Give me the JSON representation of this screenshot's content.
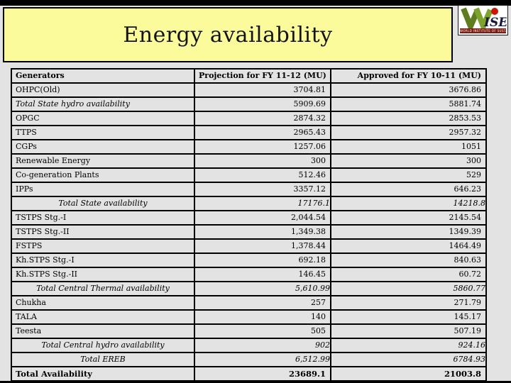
{
  "slide_title": "Energy availability",
  "logo": {
    "name": "WISE",
    "ise_letters": "ISE",
    "tagline": "WORLD INSTITUTE OF SUSTAINABLE ENERGY",
    "green": "#6b8e23",
    "red": "#cc1505",
    "band_color": "#7b1d12"
  },
  "colors": {
    "banner_bg": "#fbfb9b",
    "slide_bg": "#e3e3e3",
    "border": "#000000"
  },
  "table": {
    "headers": [
      "Generators",
      "Projection for FY 11-12 (MU)",
      "Approved for FY 10-11 (MU)"
    ],
    "rows": [
      {
        "label": "OHPC(Old)",
        "projection": "3704.81",
        "approved": "3676.86",
        "variant": "normal"
      },
      {
        "label": "Total State hydro availability",
        "projection": "5909.69",
        "approved": "5881.74",
        "variant": "italic"
      },
      {
        "label": "OPGC",
        "projection": "2874.32",
        "approved": "2853.53",
        "variant": "normal"
      },
      {
        "label": "TTPS",
        "projection": "2965.43",
        "approved": "2957.32",
        "variant": "normal"
      },
      {
        "label": "CGPs",
        "projection": "1257.06",
        "approved": "1051",
        "variant": "normal"
      },
      {
        "label": "Renewable Energy",
        "projection": "300",
        "approved": "300",
        "variant": "normal"
      },
      {
        "label": "Co-generation Plants",
        "projection": "512.46",
        "approved": "529",
        "variant": "normal"
      },
      {
        "label": "IPPs",
        "projection": "3357.12",
        "approved": "646.23",
        "variant": "normal"
      },
      {
        "label": "Total State availability",
        "projection": "17176.1",
        "approved": "14218.8",
        "variant": "center"
      },
      {
        "label": "TSTPS Stg.-I",
        "projection": "2,044.54",
        "approved": "2145.54",
        "variant": "normal"
      },
      {
        "label": "TSTPS Stg.-II",
        "projection": "1,349.38",
        "approved": "1349.39",
        "variant": "normal"
      },
      {
        "label": "FSTPS",
        "projection": "1,378.44",
        "approved": "1464.49",
        "variant": "normal"
      },
      {
        "label": "Kh.STPS Stg.-I",
        "projection": "692.18",
        "approved": "840.63",
        "variant": "normal"
      },
      {
        "label": "Kh.STPS Stg.-II",
        "projection": "146.45",
        "approved": "60.72",
        "variant": "normal"
      },
      {
        "label": "Total Central Thermal availability",
        "projection": "5,610.99",
        "approved": "5860.77",
        "variant": "center"
      },
      {
        "label": "Chukha",
        "projection": "257",
        "approved": "271.79",
        "variant": "normal"
      },
      {
        "label": "TALA",
        "projection": "140",
        "approved": "145.17",
        "variant": "normal"
      },
      {
        "label": "Teesta",
        "projection": "505",
        "approved": "507.19",
        "variant": "normal"
      },
      {
        "label": "Total Central hydro availability",
        "projection": "902",
        "approved": "924.16",
        "variant": "center"
      },
      {
        "label": "Total EREB",
        "projection": "6,512.99",
        "approved": "6784.93",
        "variant": "center"
      },
      {
        "label": "Total Availability",
        "projection": "23689.1",
        "approved": "21003.8",
        "variant": "grand"
      }
    ]
  }
}
